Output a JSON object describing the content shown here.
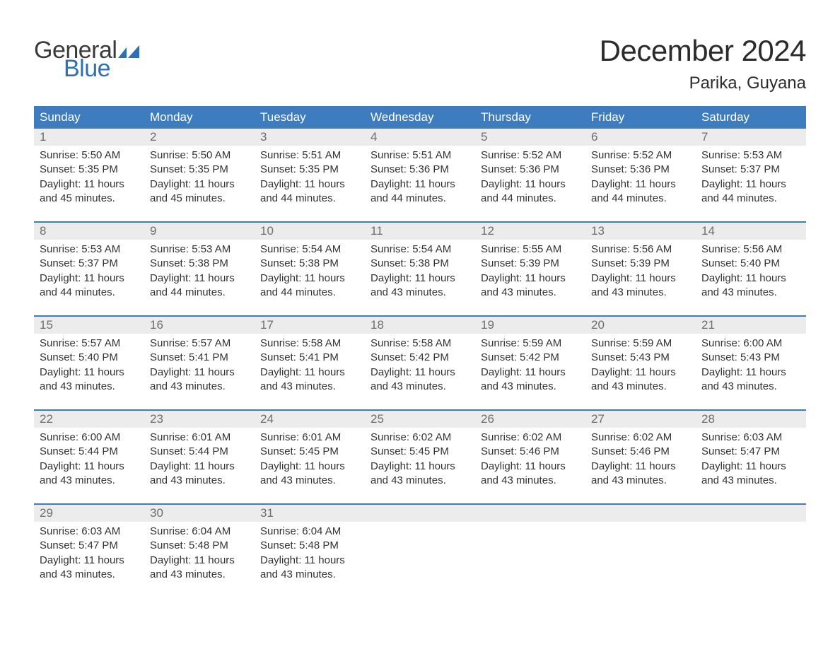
{
  "logo": {
    "line1": "General",
    "line2": "Blue"
  },
  "title": "December 2024",
  "location": "Parika, Guyana",
  "colors": {
    "header_bg": "#3d7cbf",
    "header_text": "#ffffff",
    "daynum_bg": "#ececec",
    "daynum_text": "#6e6e6e",
    "body_text": "#333333",
    "week_border": "#3d7cbf",
    "logo_blue": "#2c71b8"
  },
  "day_names": [
    "Sunday",
    "Monday",
    "Tuesday",
    "Wednesday",
    "Thursday",
    "Friday",
    "Saturday"
  ],
  "labels": {
    "sunrise": "Sunrise:",
    "sunset": "Sunset:",
    "daylight_prefix": "Daylight:",
    "hours_word": "hours",
    "and_word": "and",
    "minutes_word": "minutes."
  },
  "weeks": [
    [
      {
        "day": 1,
        "sunrise": "5:50 AM",
        "sunset": "5:35 PM",
        "dl_h": 11,
        "dl_m": 45
      },
      {
        "day": 2,
        "sunrise": "5:50 AM",
        "sunset": "5:35 PM",
        "dl_h": 11,
        "dl_m": 45
      },
      {
        "day": 3,
        "sunrise": "5:51 AM",
        "sunset": "5:35 PM",
        "dl_h": 11,
        "dl_m": 44
      },
      {
        "day": 4,
        "sunrise": "5:51 AM",
        "sunset": "5:36 PM",
        "dl_h": 11,
        "dl_m": 44
      },
      {
        "day": 5,
        "sunrise": "5:52 AM",
        "sunset": "5:36 PM",
        "dl_h": 11,
        "dl_m": 44
      },
      {
        "day": 6,
        "sunrise": "5:52 AM",
        "sunset": "5:36 PM",
        "dl_h": 11,
        "dl_m": 44
      },
      {
        "day": 7,
        "sunrise": "5:53 AM",
        "sunset": "5:37 PM",
        "dl_h": 11,
        "dl_m": 44
      }
    ],
    [
      {
        "day": 8,
        "sunrise": "5:53 AM",
        "sunset": "5:37 PM",
        "dl_h": 11,
        "dl_m": 44
      },
      {
        "day": 9,
        "sunrise": "5:53 AM",
        "sunset": "5:38 PM",
        "dl_h": 11,
        "dl_m": 44
      },
      {
        "day": 10,
        "sunrise": "5:54 AM",
        "sunset": "5:38 PM",
        "dl_h": 11,
        "dl_m": 44
      },
      {
        "day": 11,
        "sunrise": "5:54 AM",
        "sunset": "5:38 PM",
        "dl_h": 11,
        "dl_m": 43
      },
      {
        "day": 12,
        "sunrise": "5:55 AM",
        "sunset": "5:39 PM",
        "dl_h": 11,
        "dl_m": 43
      },
      {
        "day": 13,
        "sunrise": "5:56 AM",
        "sunset": "5:39 PM",
        "dl_h": 11,
        "dl_m": 43
      },
      {
        "day": 14,
        "sunrise": "5:56 AM",
        "sunset": "5:40 PM",
        "dl_h": 11,
        "dl_m": 43
      }
    ],
    [
      {
        "day": 15,
        "sunrise": "5:57 AM",
        "sunset": "5:40 PM",
        "dl_h": 11,
        "dl_m": 43
      },
      {
        "day": 16,
        "sunrise": "5:57 AM",
        "sunset": "5:41 PM",
        "dl_h": 11,
        "dl_m": 43
      },
      {
        "day": 17,
        "sunrise": "5:58 AM",
        "sunset": "5:41 PM",
        "dl_h": 11,
        "dl_m": 43
      },
      {
        "day": 18,
        "sunrise": "5:58 AM",
        "sunset": "5:42 PM",
        "dl_h": 11,
        "dl_m": 43
      },
      {
        "day": 19,
        "sunrise": "5:59 AM",
        "sunset": "5:42 PM",
        "dl_h": 11,
        "dl_m": 43
      },
      {
        "day": 20,
        "sunrise": "5:59 AM",
        "sunset": "5:43 PM",
        "dl_h": 11,
        "dl_m": 43
      },
      {
        "day": 21,
        "sunrise": "6:00 AM",
        "sunset": "5:43 PM",
        "dl_h": 11,
        "dl_m": 43
      }
    ],
    [
      {
        "day": 22,
        "sunrise": "6:00 AM",
        "sunset": "5:44 PM",
        "dl_h": 11,
        "dl_m": 43
      },
      {
        "day": 23,
        "sunrise": "6:01 AM",
        "sunset": "5:44 PM",
        "dl_h": 11,
        "dl_m": 43
      },
      {
        "day": 24,
        "sunrise": "6:01 AM",
        "sunset": "5:45 PM",
        "dl_h": 11,
        "dl_m": 43
      },
      {
        "day": 25,
        "sunrise": "6:02 AM",
        "sunset": "5:45 PM",
        "dl_h": 11,
        "dl_m": 43
      },
      {
        "day": 26,
        "sunrise": "6:02 AM",
        "sunset": "5:46 PM",
        "dl_h": 11,
        "dl_m": 43
      },
      {
        "day": 27,
        "sunrise": "6:02 AM",
        "sunset": "5:46 PM",
        "dl_h": 11,
        "dl_m": 43
      },
      {
        "day": 28,
        "sunrise": "6:03 AM",
        "sunset": "5:47 PM",
        "dl_h": 11,
        "dl_m": 43
      }
    ],
    [
      {
        "day": 29,
        "sunrise": "6:03 AM",
        "sunset": "5:47 PM",
        "dl_h": 11,
        "dl_m": 43
      },
      {
        "day": 30,
        "sunrise": "6:04 AM",
        "sunset": "5:48 PM",
        "dl_h": 11,
        "dl_m": 43
      },
      {
        "day": 31,
        "sunrise": "6:04 AM",
        "sunset": "5:48 PM",
        "dl_h": 11,
        "dl_m": 43
      },
      null,
      null,
      null,
      null
    ]
  ]
}
